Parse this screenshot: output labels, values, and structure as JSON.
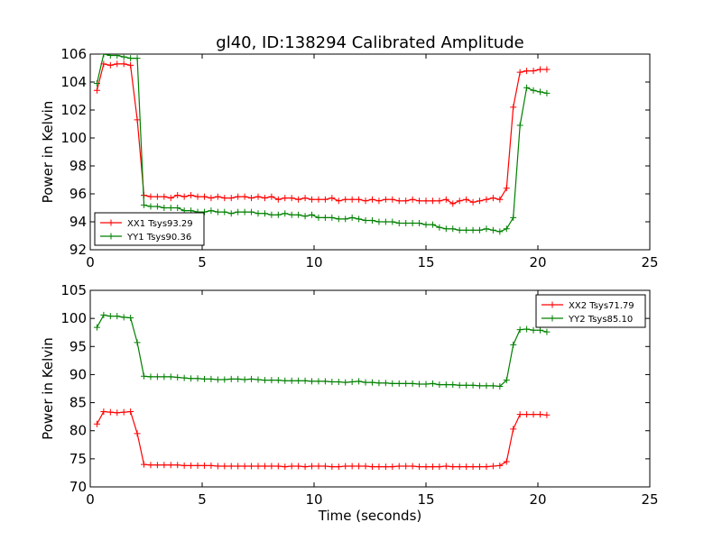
{
  "figure": {
    "title": "gl40, ID:138294 Calibrated Amplitude"
  },
  "chart_data": [
    {
      "type": "line",
      "xlabel": "",
      "ylabel": "Power in Kelvin",
      "xlim": [
        0,
        25
      ],
      "ylim": [
        92,
        106
      ],
      "xticks": [
        "0",
        "5",
        "10",
        "15",
        "20",
        "25"
      ],
      "yticks": [
        "92",
        "94",
        "96",
        "98",
        "100",
        "102",
        "104",
        "106"
      ],
      "grid": false,
      "legend_position": "lower-left",
      "x": [
        0.3,
        0.6,
        0.9,
        1.2,
        1.5,
        1.8,
        2.1,
        2.4,
        2.7,
        3.0,
        3.3,
        3.6,
        3.9,
        4.2,
        4.5,
        4.8,
        5.1,
        5.4,
        5.7,
        6.0,
        6.3,
        6.6,
        6.9,
        7.2,
        7.5,
        7.8,
        8.1,
        8.4,
        8.7,
        9.0,
        9.3,
        9.6,
        9.9,
        10.2,
        10.5,
        10.8,
        11.1,
        11.4,
        11.7,
        12.0,
        12.3,
        12.6,
        12.9,
        13.2,
        13.5,
        13.8,
        14.1,
        14.4,
        14.7,
        15.0,
        15.3,
        15.6,
        15.9,
        16.2,
        16.5,
        16.8,
        17.1,
        17.4,
        17.7,
        18.0,
        18.3,
        18.6,
        18.9,
        19.2,
        19.5,
        19.8,
        20.1,
        20.4
      ],
      "series": [
        {
          "name": "XX1 Tsys93.29",
          "color": "#ff0000",
          "values": [
            103.4,
            105.3,
            105.2,
            105.3,
            105.3,
            105.2,
            101.3,
            95.9,
            95.8,
            95.8,
            95.8,
            95.7,
            95.9,
            95.8,
            95.9,
            95.8,
            95.8,
            95.7,
            95.8,
            95.7,
            95.7,
            95.8,
            95.8,
            95.7,
            95.8,
            95.7,
            95.8,
            95.6,
            95.7,
            95.7,
            95.6,
            95.7,
            95.6,
            95.6,
            95.6,
            95.7,
            95.5,
            95.6,
            95.6,
            95.6,
            95.5,
            95.6,
            95.5,
            95.6,
            95.6,
            95.5,
            95.5,
            95.6,
            95.5,
            95.5,
            95.5,
            95.5,
            95.6,
            95.3,
            95.5,
            95.6,
            95.4,
            95.5,
            95.6,
            95.7,
            95.6,
            96.4,
            102.2,
            104.7,
            104.8,
            104.8,
            104.9,
            104.9
          ]
        },
        {
          "name": "YY1 Tsys90.36",
          "color": "#008000",
          "values": [
            103.9,
            106.0,
            105.9,
            105.9,
            105.8,
            105.7,
            105.7,
            95.2,
            95.1,
            95.1,
            95.0,
            95.0,
            95.0,
            94.8,
            94.8,
            94.7,
            94.7,
            94.8,
            94.7,
            94.7,
            94.6,
            94.7,
            94.7,
            94.7,
            94.6,
            94.6,
            94.5,
            94.5,
            94.6,
            94.5,
            94.5,
            94.4,
            94.5,
            94.3,
            94.3,
            94.3,
            94.2,
            94.2,
            94.3,
            94.2,
            94.1,
            94.1,
            94.0,
            94.0,
            94.0,
            93.9,
            93.9,
            93.9,
            93.9,
            93.8,
            93.8,
            93.6,
            93.5,
            93.5,
            93.4,
            93.4,
            93.4,
            93.4,
            93.5,
            93.4,
            93.3,
            93.5,
            94.3,
            100.9,
            103.6,
            103.4,
            103.3,
            103.2
          ]
        }
      ]
    },
    {
      "type": "line",
      "xlabel": "Time (seconds)",
      "ylabel": "Power in Kelvin",
      "xlim": [
        0,
        25
      ],
      "ylim": [
        70,
        105
      ],
      "xticks": [
        "0",
        "5",
        "10",
        "15",
        "20",
        "25"
      ],
      "yticks": [
        "70",
        "75",
        "80",
        "85",
        "90",
        "95",
        "100",
        "105"
      ],
      "grid": false,
      "legend_position": "upper-right",
      "x": [
        0.3,
        0.6,
        0.9,
        1.2,
        1.5,
        1.8,
        2.1,
        2.4,
        2.7,
        3.0,
        3.3,
        3.6,
        3.9,
        4.2,
        4.5,
        4.8,
        5.1,
        5.4,
        5.7,
        6.0,
        6.3,
        6.6,
        6.9,
        7.2,
        7.5,
        7.8,
        8.1,
        8.4,
        8.7,
        9.0,
        9.3,
        9.6,
        9.9,
        10.2,
        10.5,
        10.8,
        11.1,
        11.4,
        11.7,
        12.0,
        12.3,
        12.6,
        12.9,
        13.2,
        13.5,
        13.8,
        14.1,
        14.4,
        14.7,
        15.0,
        15.3,
        15.6,
        15.9,
        16.2,
        16.5,
        16.8,
        17.1,
        17.4,
        17.7,
        18.0,
        18.3,
        18.6,
        18.9,
        19.2,
        19.5,
        19.8,
        20.1,
        20.4
      ],
      "series": [
        {
          "name": "XX2 Tsys71.79",
          "color": "#ff0000",
          "values": [
            81.2,
            83.4,
            83.3,
            83.2,
            83.3,
            83.4,
            79.5,
            74.0,
            73.9,
            73.9,
            73.9,
            73.9,
            73.9,
            73.8,
            73.8,
            73.8,
            73.8,
            73.8,
            73.7,
            73.7,
            73.7,
            73.7,
            73.7,
            73.7,
            73.7,
            73.7,
            73.7,
            73.7,
            73.6,
            73.7,
            73.7,
            73.6,
            73.7,
            73.7,
            73.7,
            73.6,
            73.6,
            73.7,
            73.7,
            73.7,
            73.7,
            73.6,
            73.6,
            73.6,
            73.6,
            73.7,
            73.7,
            73.7,
            73.6,
            73.6,
            73.6,
            73.6,
            73.7,
            73.6,
            73.6,
            73.6,
            73.6,
            73.6,
            73.6,
            73.7,
            73.8,
            74.5,
            80.3,
            82.9,
            82.9,
            82.9,
            82.9,
            82.8
          ]
        },
        {
          "name": "YY2 Tsys85.10",
          "color": "#008000",
          "values": [
            98.4,
            100.6,
            100.4,
            100.4,
            100.2,
            100.1,
            95.7,
            89.7,
            89.6,
            89.6,
            89.6,
            89.6,
            89.5,
            89.4,
            89.3,
            89.3,
            89.2,
            89.2,
            89.1,
            89.1,
            89.2,
            89.2,
            89.1,
            89.2,
            89.1,
            89.0,
            89.0,
            89.0,
            88.9,
            88.9,
            88.9,
            88.9,
            88.8,
            88.8,
            88.8,
            88.7,
            88.7,
            88.6,
            88.7,
            88.8,
            88.6,
            88.6,
            88.5,
            88.5,
            88.4,
            88.4,
            88.4,
            88.4,
            88.3,
            88.3,
            88.4,
            88.2,
            88.2,
            88.2,
            88.1,
            88.1,
            88.1,
            88.0,
            88.0,
            88.0,
            87.9,
            89.0,
            95.3,
            98.0,
            98.1,
            97.9,
            97.9,
            97.6
          ]
        }
      ]
    }
  ]
}
